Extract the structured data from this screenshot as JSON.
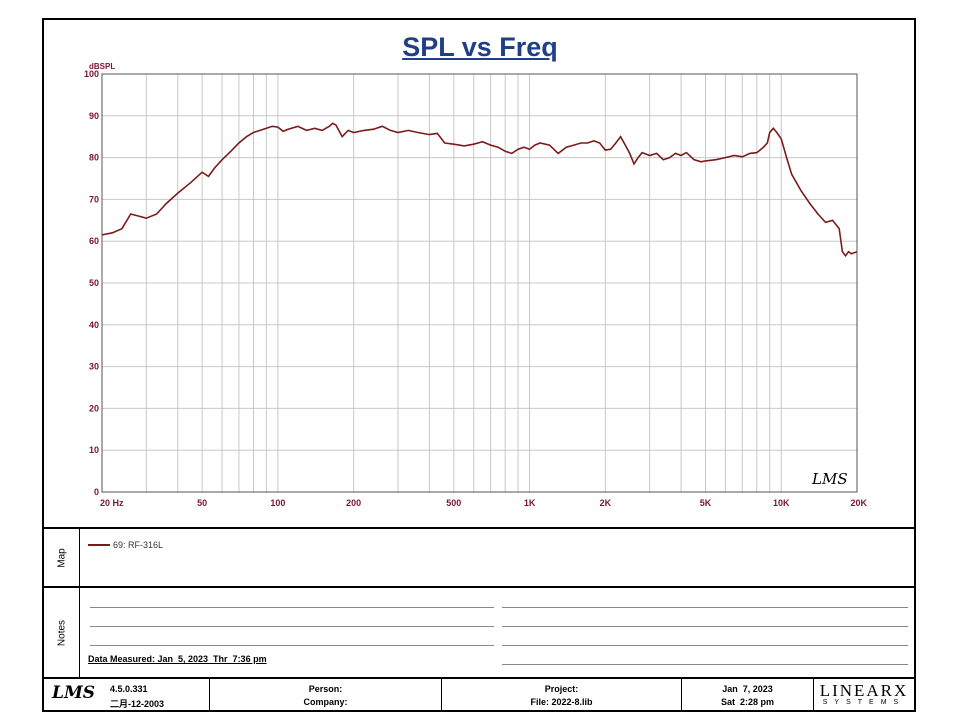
{
  "chart_data": {
    "type": "line",
    "title": "SPL vs Freq",
    "ylabel": "dBSPL",
    "xlabel": "",
    "xscale": "log",
    "xlim": [
      20,
      20000
    ],
    "ylim": [
      0,
      100
    ],
    "grid": true,
    "y_ticks": [
      "0",
      "10",
      "20",
      "30",
      "40",
      "50",
      "60",
      "70",
      "80",
      "90",
      "100"
    ],
    "x_ticks": [
      {
        "value": 20,
        "label": "20  Hz"
      },
      {
        "value": 50,
        "label": "50"
      },
      {
        "value": 100,
        "label": "100"
      },
      {
        "value": 200,
        "label": "200"
      },
      {
        "value": 500,
        "label": "500"
      },
      {
        "value": 1000,
        "label": "1K"
      },
      {
        "value": 2000,
        "label": "2K"
      },
      {
        "value": 5000,
        "label": "5K"
      },
      {
        "value": 10000,
        "label": "10K"
      },
      {
        "value": 20000,
        "label": "20K"
      }
    ],
    "watermark": "LMS",
    "series": [
      {
        "name": "69: RF-316L",
        "color": "#7a1c1c",
        "x": [
          20,
          22,
          24,
          26,
          28,
          30,
          33,
          36,
          40,
          45,
          50,
          53,
          56,
          60,
          65,
          70,
          75,
          80,
          85,
          90,
          95,
          100,
          105,
          110,
          120,
          130,
          140,
          150,
          160,
          165,
          170,
          180,
          190,
          200,
          220,
          240,
          260,
          280,
          300,
          330,
          360,
          400,
          430,
          460,
          500,
          550,
          600,
          650,
          700,
          750,
          800,
          850,
          900,
          950,
          1000,
          1050,
          1100,
          1200,
          1300,
          1400,
          1500,
          1600,
          1700,
          1800,
          1900,
          2000,
          2100,
          2200,
          2300,
          2400,
          2500,
          2600,
          2700,
          2800,
          3000,
          3200,
          3400,
          3600,
          3800,
          4000,
          4200,
          4500,
          4800,
          5000,
          5500,
          6000,
          6500,
          7000,
          7500,
          8000,
          8500,
          8800,
          9000,
          9300,
          9600,
          10000,
          10500,
          11000,
          12000,
          13000,
          14000,
          15000,
          16000,
          17000,
          17500,
          18000,
          18500,
          19000,
          20000
        ],
        "values": [
          61.5,
          62,
          63,
          66.5,
          66,
          65.5,
          66.5,
          69,
          71.5,
          74,
          76.5,
          75.5,
          77.5,
          79.5,
          81.5,
          83.5,
          85,
          86,
          86.5,
          87,
          87.5,
          87.3,
          86.3,
          86.8,
          87.5,
          86.5,
          87,
          86.5,
          87.5,
          88.2,
          87.8,
          85,
          86.5,
          86,
          86.5,
          86.8,
          87.5,
          86.5,
          86,
          86.5,
          86,
          85.5,
          85.8,
          83.5,
          83.2,
          82.8,
          83.2,
          83.8,
          83,
          82.5,
          81.5,
          81,
          82,
          82.5,
          82,
          83,
          83.5,
          83,
          81,
          82.5,
          83,
          83.5,
          83.5,
          84,
          83.5,
          81.8,
          82,
          83.5,
          85,
          83,
          81,
          78.5,
          80,
          81.2,
          80.5,
          81,
          79.5,
          80,
          81,
          80.5,
          81.2,
          79.5,
          79,
          79.2,
          79.5,
          80,
          80.5,
          80.2,
          81,
          81.2,
          82.5,
          83.5,
          86,
          87,
          86,
          84.5,
          80,
          76,
          72,
          69,
          66.5,
          64.5,
          65,
          63,
          57.5,
          56.5,
          57.5,
          57,
          57.5
        ]
      }
    ]
  },
  "legend": {
    "label": "69: RF-316L",
    "color": "#7a1c1c"
  },
  "sections": {
    "map_label": "Map",
    "notes_label": "Notes"
  },
  "notes": {
    "date_measured": "Data Measured: Jan  5, 2023  Thr  7:36 pm"
  },
  "footer": {
    "logo": "LMS",
    "version": "4.5.0.331",
    "build_date": "二月-12-2003",
    "person_label": "Person:",
    "company_label": "Company:",
    "project_label": "Project:",
    "file_label": "File: 2022-8.lib",
    "date": "Jan  7, 2023",
    "day_time": "Sat  2:28 pm",
    "brand_name": "LINEARX",
    "brand_sub": "SYSTEMS"
  },
  "colors": {
    "grid": "#c8c8c8",
    "axis_text": "#7a1530",
    "title": "#1f3f86",
    "curve": "#7a1c1c"
  }
}
